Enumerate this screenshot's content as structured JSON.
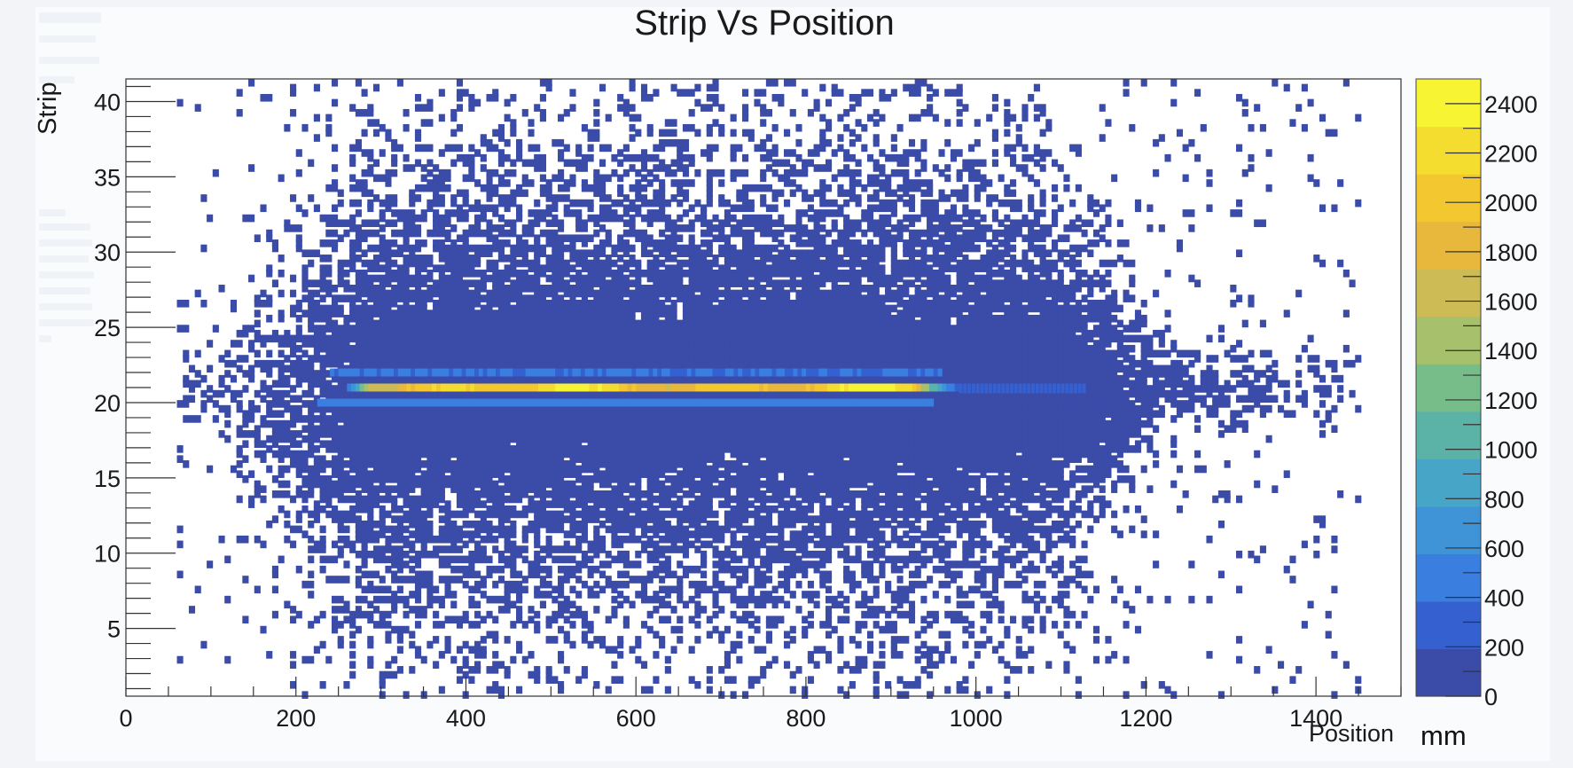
{
  "chart_data": {
    "type": "heatmap",
    "title": "Strip Vs Position",
    "xlabel": "Position",
    "x_unit": "mm",
    "ylabel": "Strip",
    "xlim": [
      0,
      1500
    ],
    "ylim": [
      0.5,
      41.5
    ],
    "x_ticks": [
      0,
      200,
      400,
      600,
      800,
      1000,
      1200,
      1400
    ],
    "y_ticks": [
      5,
      10,
      15,
      20,
      25,
      30,
      35,
      40
    ],
    "colorbar": {
      "range": [
        0,
        2500
      ],
      "ticks": [
        0,
        200,
        400,
        600,
        800,
        1000,
        1200,
        1400,
        1600,
        1800,
        2000,
        2200,
        2400
      ],
      "palette": [
        "#3a4ba8",
        "#3560d0",
        "#3a7ee0",
        "#3f94d8",
        "#47a6c8",
        "#5bb3a8",
        "#77bd8a",
        "#a6c06c",
        "#cdbb55",
        "#e8b83c",
        "#f2c72f",
        "#f4dd2e",
        "#f6f433"
      ]
    },
    "grid": false,
    "peak": {
      "strip": 21,
      "x_range_mm": [
        255,
        980
      ],
      "max_count": 2400
    },
    "side_strips": [
      {
        "strip": 22,
        "x_range_mm": [
          240,
          960
        ],
        "count": 400
      },
      {
        "strip": 20,
        "x_range_mm": [
          225,
          950
        ],
        "count": 450
      }
    ],
    "noise_band": {
      "center_strip": 21,
      "x_range_mm": [
        60,
        1450
      ],
      "count": 50
    }
  }
}
